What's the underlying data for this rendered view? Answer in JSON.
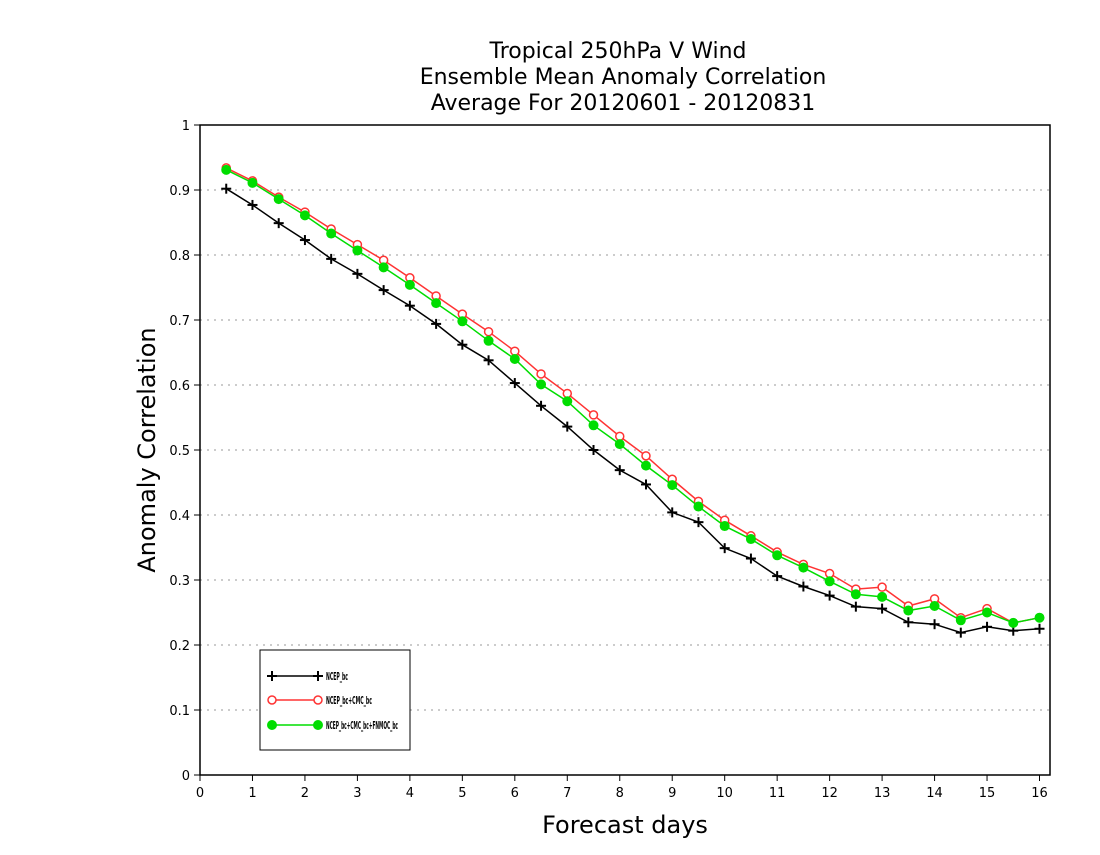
{
  "chart_data": {
    "type": "line",
    "title": [
      "Tropical 250hPa V Wind",
      "Ensemble Mean Anomaly Correlation",
      "Average For 20120601 - 20120831"
    ],
    "xlabel": "Forecast days",
    "ylabel": "Anomaly Correlation",
    "xlim": [
      0,
      16.2
    ],
    "ylim": [
      0,
      1
    ],
    "xticks": [
      "0",
      "1",
      "2",
      "3",
      "4",
      "5",
      "6",
      "7",
      "8",
      "9",
      "10",
      "11",
      "12",
      "13",
      "14",
      "15",
      "16"
    ],
    "yticks": [
      "0",
      "0.1",
      "0.2",
      "0.3",
      "0.4",
      "0.5",
      "0.6",
      "0.7",
      "0.8",
      "0.9",
      "1"
    ],
    "grid": "horizontal-dotted",
    "legend_position": "bottom-left",
    "x": [
      0.5,
      1,
      1.5,
      2,
      2.5,
      3,
      3.5,
      4,
      4.5,
      5,
      5.5,
      6,
      6.5,
      7,
      7.5,
      8,
      8.5,
      9,
      9.5,
      10,
      10.5,
      11,
      11.5,
      12,
      12.5,
      13,
      13.5,
      14,
      14.5,
      15,
      15.5,
      16
    ],
    "series": [
      {
        "name": "NCEP_bc",
        "color": "#000000",
        "marker": "plus",
        "values": [
          0.902,
          0.877,
          0.849,
          0.823,
          0.794,
          0.771,
          0.746,
          0.722,
          0.694,
          0.662,
          0.638,
          0.603,
          0.568,
          0.536,
          0.5,
          0.469,
          0.447,
          0.404,
          0.389,
          0.349,
          0.333,
          0.306,
          0.29,
          0.276,
          0.259,
          0.256,
          0.235,
          0.232,
          0.219,
          0.228,
          0.222,
          0.225
        ]
      },
      {
        "name": "NCEP_bc+CMC_bc",
        "color": "#ff3333",
        "marker": "open-circle",
        "values": [
          0.934,
          0.914,
          0.889,
          0.866,
          0.84,
          0.816,
          0.792,
          0.765,
          0.737,
          0.709,
          0.682,
          0.652,
          0.617,
          0.587,
          0.554,
          0.521,
          0.491,
          0.455,
          0.421,
          0.392,
          0.368,
          0.343,
          0.324,
          0.31,
          0.286,
          0.289,
          0.26,
          0.271,
          0.242,
          0.256,
          0.234,
          0.242
        ]
      },
      {
        "name": "NCEP_bc+CMC_bc+FNMOC_bc",
        "color": "#00dd00",
        "marker": "filled-circle",
        "values": [
          0.931,
          0.911,
          0.886,
          0.861,
          0.833,
          0.807,
          0.781,
          0.754,
          0.726,
          0.698,
          0.668,
          0.64,
          0.601,
          0.575,
          0.538,
          0.509,
          0.476,
          0.446,
          0.413,
          0.383,
          0.363,
          0.338,
          0.319,
          0.298,
          0.278,
          0.274,
          0.253,
          0.26,
          0.238,
          0.25,
          0.234,
          0.242
        ]
      }
    ]
  }
}
